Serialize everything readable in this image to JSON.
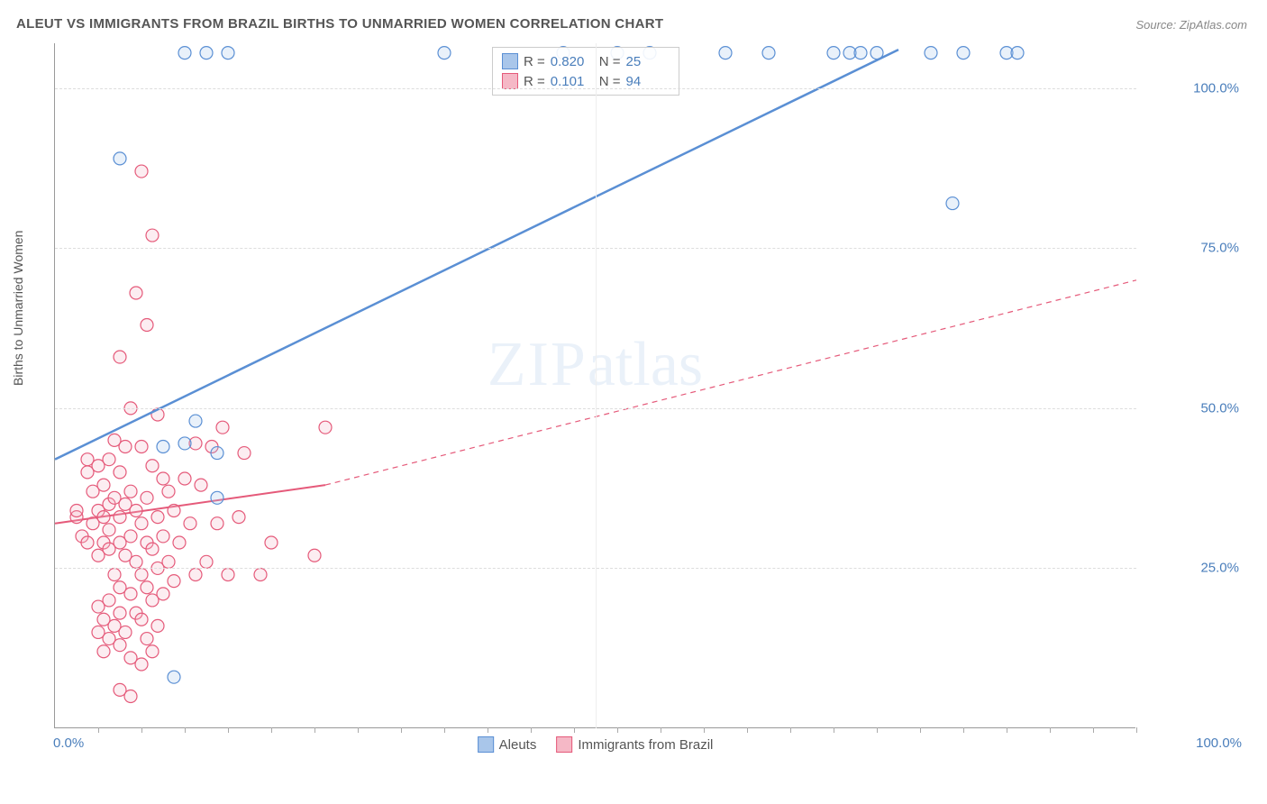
{
  "title": "ALEUT VS IMMIGRANTS FROM BRAZIL BIRTHS TO UNMARRIED WOMEN CORRELATION CHART",
  "source": "Source: ZipAtlas.com",
  "ylabel": "Births to Unmarried Women",
  "watermark_zip": "ZIP",
  "watermark_atlas": "atlas",
  "chart": {
    "type": "scatter",
    "xlim": [
      0,
      100
    ],
    "ylim": [
      0,
      107
    ],
    "xtick_labels": {
      "left": "0.0%",
      "right": "100.0%"
    },
    "ytick_labels": [
      "25.0%",
      "50.0%",
      "75.0%",
      "100.0%"
    ],
    "ytick_values": [
      25,
      50,
      75,
      100
    ],
    "xtick_minor": [
      4,
      8,
      12,
      16,
      20,
      24,
      28,
      32,
      36,
      40,
      44,
      48,
      52,
      56,
      60,
      64,
      68,
      72,
      76,
      80,
      84,
      88,
      92,
      96,
      100
    ],
    "grid_color": "#dddddd",
    "background_color": "#ffffff",
    "marker_radius": 7,
    "marker_stroke_width": 1.2,
    "marker_fill_opacity": 0.25,
    "series": [
      {
        "name": "Aleuts",
        "color": "#5a8fd4",
        "fill": "#a9c6ea",
        "r_value": "0.820",
        "n_value": "25",
        "trend": {
          "x1": 0,
          "y1": 42,
          "x2": 78,
          "y2": 106,
          "width": 2.5,
          "dash": "none",
          "extrapolate": false
        },
        "points": [
          [
            6,
            89
          ],
          [
            11,
            8
          ],
          [
            12,
            105.5
          ],
          [
            13,
            48
          ],
          [
            14,
            105.5
          ],
          [
            15,
            36
          ],
          [
            16,
            105.5
          ],
          [
            36,
            105.5
          ],
          [
            47,
            105.5
          ],
          [
            52,
            105.5
          ],
          [
            55,
            105.5
          ],
          [
            62,
            105.5
          ],
          [
            66,
            105.5
          ],
          [
            72,
            105.5
          ],
          [
            73.5,
            105.5
          ],
          [
            74.5,
            105.5
          ],
          [
            76,
            105.5
          ],
          [
            81,
            105.5
          ],
          [
            83,
            82
          ],
          [
            84,
            105.5
          ],
          [
            88,
            105.5
          ],
          [
            89,
            105.5
          ],
          [
            12,
            44.5
          ],
          [
            15,
            43
          ],
          [
            10,
            44
          ]
        ]
      },
      {
        "name": "Immigrants from Brazil",
        "color": "#e55a7a",
        "fill": "#f5b8c6",
        "r_value": "0.101",
        "n_value": "94",
        "trend": {
          "x1": 0,
          "y1": 32,
          "x2": 25,
          "y2": 38,
          "width": 2,
          "dash": "none",
          "extrapolate": true,
          "ext_x2": 100,
          "ext_y2": 70,
          "ext_dash": "6 5"
        },
        "points": [
          [
            2,
            33
          ],
          [
            2,
            34
          ],
          [
            2.5,
            30
          ],
          [
            3,
            29
          ],
          [
            3,
            40
          ],
          [
            3,
            42
          ],
          [
            3.5,
            32
          ],
          [
            3.5,
            37
          ],
          [
            4,
            15
          ],
          [
            4,
            19
          ],
          [
            4,
            27
          ],
          [
            4,
            34
          ],
          [
            4,
            41
          ],
          [
            4.5,
            12
          ],
          [
            4.5,
            17
          ],
          [
            4.5,
            29
          ],
          [
            4.5,
            33
          ],
          [
            4.5,
            38
          ],
          [
            5,
            14
          ],
          [
            5,
            20
          ],
          [
            5,
            28
          ],
          [
            5,
            31
          ],
          [
            5,
            35
          ],
          [
            5,
            42
          ],
          [
            5.5,
            16
          ],
          [
            5.5,
            24
          ],
          [
            5.5,
            36
          ],
          [
            5.5,
            45
          ],
          [
            6,
            6
          ],
          [
            6,
            13
          ],
          [
            6,
            18
          ],
          [
            6,
            22
          ],
          [
            6,
            29
          ],
          [
            6,
            33
          ],
          [
            6,
            40
          ],
          [
            6,
            58
          ],
          [
            6.5,
            15
          ],
          [
            6.5,
            27
          ],
          [
            6.5,
            35
          ],
          [
            6.5,
            44
          ],
          [
            7,
            5
          ],
          [
            7,
            11
          ],
          [
            7,
            21
          ],
          [
            7,
            30
          ],
          [
            7,
            37
          ],
          [
            7,
            50
          ],
          [
            7.5,
            18
          ],
          [
            7.5,
            26
          ],
          [
            7.5,
            34
          ],
          [
            7.5,
            68
          ],
          [
            8,
            10
          ],
          [
            8,
            17
          ],
          [
            8,
            24
          ],
          [
            8,
            32
          ],
          [
            8,
            44
          ],
          [
            8,
            87
          ],
          [
            8.5,
            14
          ],
          [
            8.5,
            22
          ],
          [
            8.5,
            29
          ],
          [
            8.5,
            36
          ],
          [
            8.5,
            63
          ],
          [
            9,
            12
          ],
          [
            9,
            20
          ],
          [
            9,
            28
          ],
          [
            9,
            41
          ],
          [
            9,
            77
          ],
          [
            9.5,
            16
          ],
          [
            9.5,
            25
          ],
          [
            9.5,
            33
          ],
          [
            9.5,
            49
          ],
          [
            10,
            21
          ],
          [
            10,
            30
          ],
          [
            10,
            39
          ],
          [
            10.5,
            26
          ],
          [
            10.5,
            37
          ],
          [
            11,
            23
          ],
          [
            11,
            34
          ],
          [
            11.5,
            29
          ],
          [
            12,
            39
          ],
          [
            12.5,
            32
          ],
          [
            13,
            24
          ],
          [
            13,
            44.5
          ],
          [
            13.5,
            38
          ],
          [
            14,
            26
          ],
          [
            14.5,
            44
          ],
          [
            15,
            32
          ],
          [
            15.5,
            47
          ],
          [
            16,
            24
          ],
          [
            17,
            33
          ],
          [
            17.5,
            43
          ],
          [
            19,
            24
          ],
          [
            20,
            29
          ],
          [
            24,
            27
          ],
          [
            25,
            47
          ]
        ]
      }
    ],
    "legend_bottom": [
      {
        "label": "Aleuts",
        "color": "#5a8fd4",
        "fill": "#a9c6ea"
      },
      {
        "label": "Immigrants from Brazil",
        "color": "#e55a7a",
        "fill": "#f5b8c6"
      }
    ]
  }
}
